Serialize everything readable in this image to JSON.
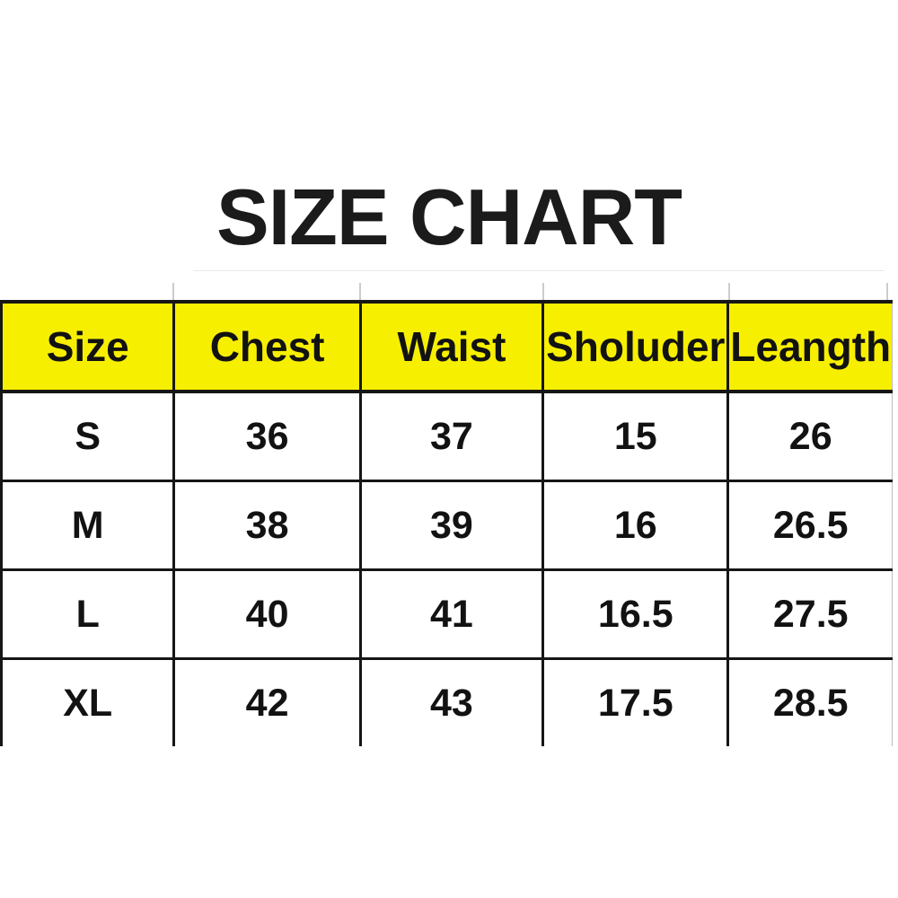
{
  "page": {
    "title": "SIZE CHART"
  },
  "chart_data": {
    "type": "table",
    "title": "SIZE CHART",
    "columns": [
      "Size",
      "Chest",
      "Waist",
      "Sholuder",
      "Leangth"
    ],
    "rows": [
      [
        "S",
        "36",
        "37",
        "15",
        "26"
      ],
      [
        "M",
        "38",
        "39",
        "16",
        "26.5"
      ],
      [
        "L",
        "40",
        "41",
        "16.5",
        "27.5"
      ],
      [
        "XL",
        "42",
        "43",
        "17.5",
        "28.5"
      ]
    ],
    "layout": {
      "header_fill": "yellow",
      "grid": "solid black lines",
      "bottom_border": "none",
      "title_position": "top-center"
    }
  },
  "colors": {
    "header_bg": "#f7ef00",
    "border": "#161616",
    "text": "#121212",
    "background": "#ffffff"
  }
}
